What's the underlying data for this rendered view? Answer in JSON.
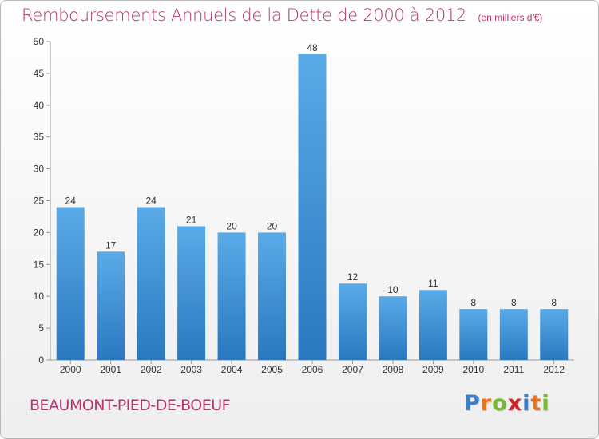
{
  "header": {
    "title": "Remboursements Annuels de la Dette de 2000 à 2012",
    "unit": "(en milliers d'€)"
  },
  "footer": {
    "city": "BEAUMONT-PIED-DE-BOEUF",
    "logo_letters": [
      "P",
      "r",
      "o",
      "x",
      "i",
      "t",
      "i"
    ],
    "logo_colors": [
      "#3d7fc9",
      "#e8731f",
      "#78b833",
      "#d2232a",
      "#3d7fc9",
      "#e8731f",
      "#78b833"
    ]
  },
  "chart_data": {
    "type": "bar",
    "title": "Remboursements Annuels de la Dette de 2000 à 2012",
    "subtitle": "(en milliers d'€)",
    "categories": [
      "2000",
      "2001",
      "2002",
      "2003",
      "2004",
      "2005",
      "2006",
      "2007",
      "2008",
      "2009",
      "2010",
      "2011",
      "2012"
    ],
    "values": [
      24,
      17,
      24,
      21,
      20,
      20,
      48,
      12,
      10,
      11,
      8,
      8,
      8
    ],
    "data_labels": [
      "24",
      "17",
      "24",
      "21",
      "20",
      "20",
      "48",
      "12",
      "10",
      "11",
      "8",
      "8",
      "8"
    ],
    "y_ticks": [
      0,
      5,
      10,
      15,
      20,
      25,
      30,
      35,
      40,
      45,
      50
    ],
    "y_tick_labels": [
      "0",
      "5",
      "10",
      "15",
      "20",
      "25",
      "30",
      "35",
      "40",
      "45",
      "50"
    ],
    "ylim": [
      0,
      50
    ],
    "xlabel": "",
    "ylabel": "",
    "grid": false,
    "bar_color": "#3f8fd6"
  }
}
